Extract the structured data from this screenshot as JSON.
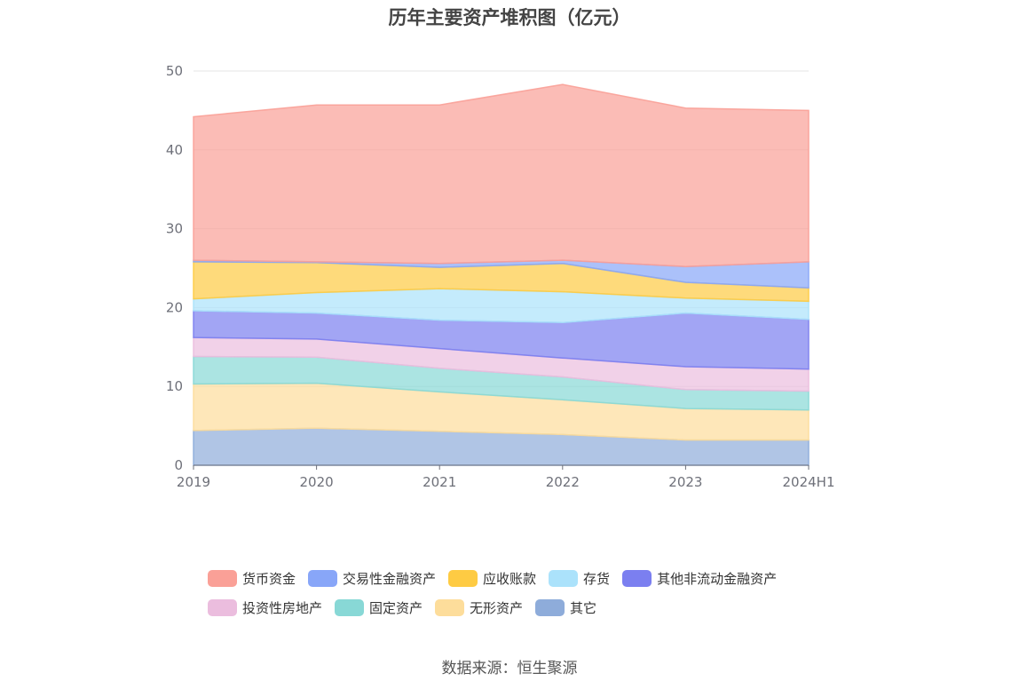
{
  "chart_data": {
    "type": "area",
    "stacked": true,
    "title": "历年主要资产堆积图（亿元）",
    "categories": [
      "2019",
      "2020",
      "2021",
      "2022",
      "2023",
      "2024H1"
    ],
    "ylim": [
      0,
      50
    ],
    "yticks": [
      0,
      10,
      20,
      30,
      40,
      50
    ],
    "grid": true,
    "legend_position": "bottom",
    "series": [
      {
        "name": "其它",
        "color": "#8eacda",
        "values": [
          4.4,
          4.7,
          4.3,
          3.9,
          3.2,
          3.2
        ]
      },
      {
        "name": "无形资产",
        "color": "#fddd9b",
        "values": [
          5.9,
          5.7,
          5.0,
          4.4,
          4.0,
          3.8
        ]
      },
      {
        "name": "固定资产",
        "color": "#88d8d6",
        "values": [
          3.5,
          3.3,
          3.0,
          2.9,
          2.4,
          2.4
        ]
      },
      {
        "name": "投资性房地产",
        "color": "#ebbdde",
        "values": [
          2.4,
          2.3,
          2.5,
          2.4,
          2.9,
          2.8
        ]
      },
      {
        "name": "其他非流动金融资产",
        "color": "#7b7ff0",
        "values": [
          3.4,
          3.3,
          3.6,
          4.5,
          6.8,
          6.3
        ]
      },
      {
        "name": "存货",
        "color": "#abe2fb",
        "values": [
          1.5,
          2.6,
          4.0,
          3.9,
          1.9,
          2.3
        ]
      },
      {
        "name": "应收账款",
        "color": "#fecb43",
        "values": [
          4.7,
          3.8,
          2.7,
          3.6,
          2.0,
          1.7
        ]
      },
      {
        "name": "交易性金融资产",
        "color": "#88a6f8",
        "values": [
          0.2,
          0.1,
          0.5,
          0.4,
          2.0,
          3.3
        ]
      },
      {
        "name": "货币资金",
        "color": "#faa097",
        "values": [
          18.2,
          19.9,
          20.1,
          22.3,
          20.1,
          19.2
        ]
      }
    ]
  },
  "legend_rows": [
    [
      "货币资金",
      "交易性金融资产",
      "应收账款",
      "存货",
      "其他非流动金融资产"
    ],
    [
      "投资性房地产",
      "固定资产",
      "无形资产",
      "其它"
    ]
  ],
  "source": "数据来源：恒生聚源"
}
